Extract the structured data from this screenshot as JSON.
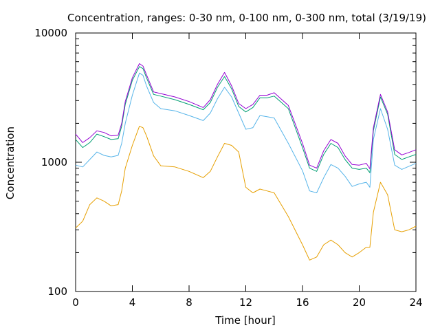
{
  "chart_data": {
    "type": "line",
    "title": "Concentration, ranges: 0-30 nm, 0-100 nm, 0-300 nm, total (3/19/19)",
    "xlabel": "Time [hour]",
    "ylabel": "Concentration",
    "xlim": [
      0,
      24
    ],
    "ylim": [
      100,
      10000
    ],
    "y_scale": "log",
    "grid": false,
    "legend": "none",
    "x_ticks": [
      0,
      4,
      8,
      12,
      16,
      20,
      24
    ],
    "x_tick_labels": [
      "0",
      "4",
      "8",
      "12",
      "16",
      "20",
      "24"
    ],
    "y_ticks": [
      100,
      1000,
      10000
    ],
    "y_tick_labels": [
      "100",
      "1000",
      "10000"
    ],
    "series": [
      {
        "color": "#e69f00",
        "x": [
          0,
          0.5,
          1,
          1.5,
          2,
          2.5,
          3,
          3.25,
          3.5,
          4,
          4.5,
          4.75,
          5,
          5.5,
          6,
          7,
          8,
          9,
          9.5,
          10,
          10.5,
          11,
          11.5,
          12,
          12.5,
          13,
          13.5,
          14,
          15,
          16,
          16.5,
          17,
          17.5,
          18,
          18.5,
          19,
          19.5,
          20,
          20.5,
          20.75,
          21,
          21.5,
          22,
          22.5,
          23,
          23.5,
          24
        ],
        "values": [
          310,
          350,
          470,
          530,
          500,
          460,
          470,
          600,
          900,
          1350,
          1900,
          1850,
          1600,
          1120,
          940,
          920,
          850,
          760,
          850,
          1100,
          1400,
          1350,
          1200,
          640,
          580,
          620,
          600,
          580,
          380,
          230,
          175,
          185,
          230,
          250,
          230,
          200,
          185,
          200,
          220,
          220,
          410,
          700,
          560,
          300,
          290,
          300,
          320
        ]
      },
      {
        "color": "#56b4e9",
        "x": [
          0,
          0.5,
          1,
          1.5,
          2,
          2.5,
          3,
          3.25,
          3.5,
          4,
          4.5,
          4.75,
          5,
          5.5,
          6,
          7,
          8,
          9,
          9.5,
          10,
          10.5,
          11,
          11.5,
          12,
          12.5,
          13,
          13.5,
          14,
          15,
          16,
          16.5,
          17,
          17.5,
          18,
          18.5,
          19,
          19.5,
          20,
          20.5,
          20.75,
          21,
          21.5,
          22,
          22.5,
          23,
          23.5,
          24
        ],
        "values": [
          950,
          920,
          1050,
          1200,
          1130,
          1100,
          1130,
          1400,
          2000,
          3300,
          4900,
          4700,
          3900,
          2900,
          2600,
          2500,
          2300,
          2100,
          2400,
          3100,
          3800,
          3200,
          2400,
          1800,
          1850,
          2300,
          2250,
          2200,
          1400,
          860,
          600,
          580,
          760,
          960,
          900,
          780,
          650,
          680,
          700,
          640,
          1500,
          2600,
          1800,
          950,
          880,
          930,
          980
        ]
      },
      {
        "color": "#009e73",
        "x": [
          0,
          0.5,
          1,
          1.5,
          2,
          2.5,
          3,
          3.25,
          3.5,
          4,
          4.5,
          4.75,
          5,
          5.5,
          6,
          7,
          8,
          9,
          9.5,
          10,
          10.5,
          11,
          11.5,
          12,
          12.5,
          13,
          13.5,
          14,
          15,
          16,
          16.5,
          17,
          17.5,
          18,
          18.5,
          19,
          19.5,
          20,
          20.5,
          20.75,
          21,
          21.5,
          22,
          22.5,
          23,
          23.5,
          24
        ],
        "values": [
          1500,
          1300,
          1420,
          1650,
          1580,
          1500,
          1520,
          1900,
          2800,
          4300,
          5500,
          5300,
          4500,
          3350,
          3250,
          3050,
          2800,
          2550,
          2900,
          3800,
          4600,
          3700,
          2700,
          2450,
          2650,
          3150,
          3150,
          3250,
          2600,
          1300,
          900,
          850,
          1150,
          1400,
          1300,
          1050,
          900,
          880,
          900,
          830,
          1750,
          3200,
          2350,
          1150,
          1050,
          1100,
          1150
        ]
      },
      {
        "color": "#9400d3",
        "x": [
          0,
          0.5,
          1,
          1.5,
          2,
          2.5,
          3,
          3.25,
          3.5,
          4,
          4.5,
          4.75,
          5,
          5.5,
          6,
          7,
          8,
          9,
          9.5,
          10,
          10.5,
          11,
          11.5,
          12,
          12.5,
          13,
          13.5,
          14,
          15,
          16,
          16.5,
          17,
          17.5,
          18,
          18.5,
          19,
          19.5,
          20,
          20.5,
          20.75,
          21,
          21.5,
          22,
          22.5,
          23,
          23.5,
          24
        ],
        "values": [
          1650,
          1420,
          1550,
          1750,
          1700,
          1600,
          1620,
          2000,
          2950,
          4500,
          5800,
          5550,
          4750,
          3500,
          3400,
          3200,
          2950,
          2650,
          3050,
          4000,
          4950,
          3900,
          2850,
          2600,
          2800,
          3300,
          3300,
          3450,
          2750,
          1400,
          950,
          900,
          1230,
          1500,
          1400,
          1120,
          960,
          950,
          980,
          890,
          1850,
          3350,
          2450,
          1250,
          1140,
          1190,
          1250
        ]
      }
    ]
  }
}
